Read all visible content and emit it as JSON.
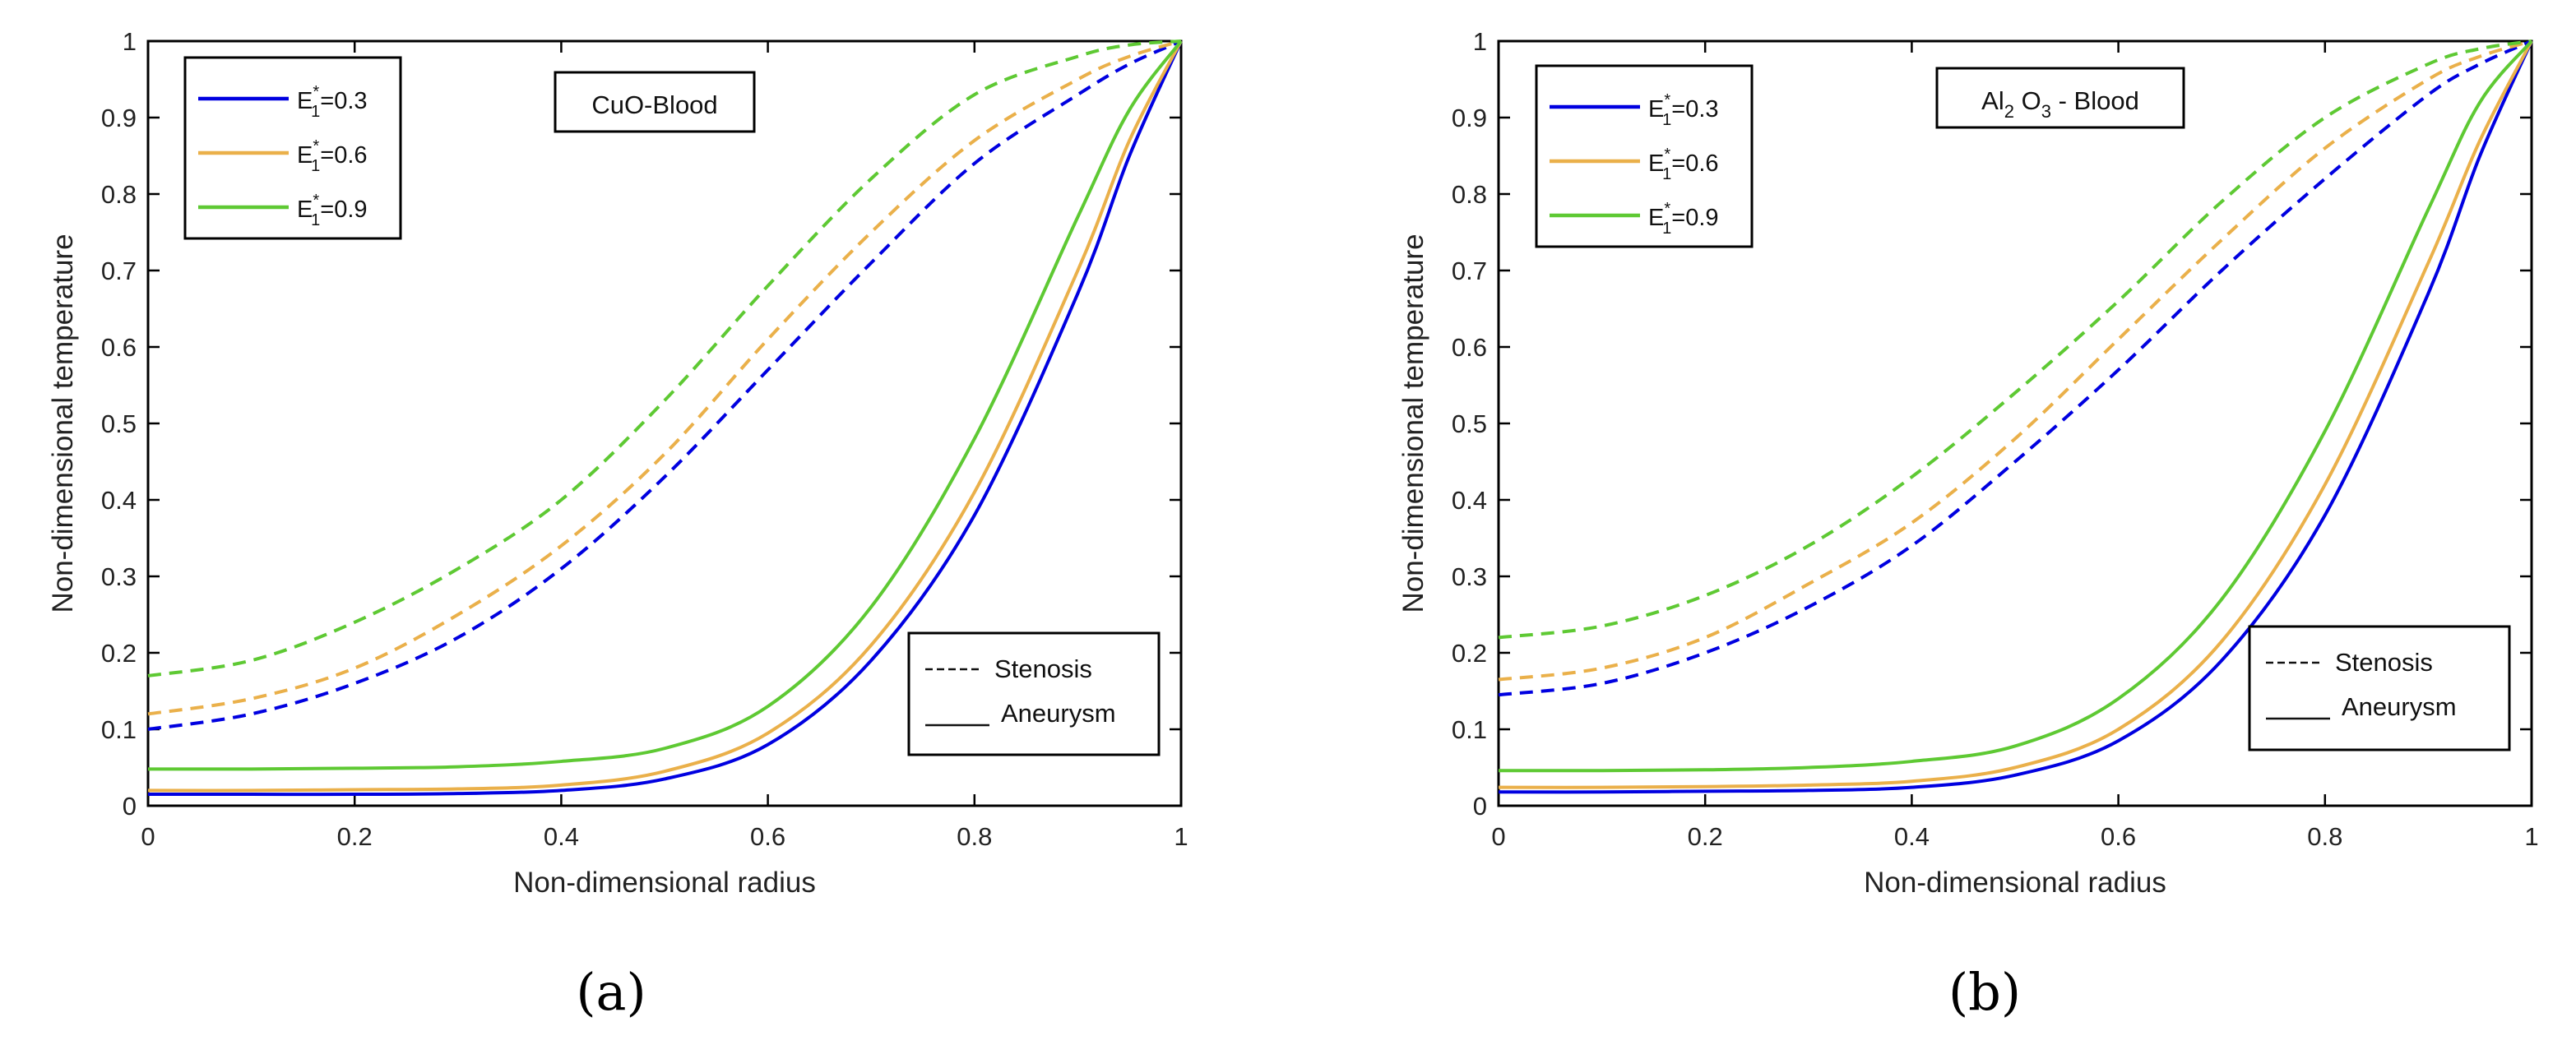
{
  "panel_labels": [
    "(a)",
    "(b)"
  ],
  "chart_data": [
    {
      "type": "line",
      "title": "",
      "annotation": "CuO-Blood",
      "xlabel": "Non-dimensional radius",
      "ylabel": "Non-dimensional temperature",
      "xlim": [
        0,
        1
      ],
      "ylim": [
        0,
        1
      ],
      "xticks": [
        0,
        0.2,
        0.4,
        0.6,
        0.8,
        1
      ],
      "xtick_labels": [
        "0",
        "0.2",
        "0.4",
        "0.6",
        "0.8",
        "1"
      ],
      "yticks": [
        0,
        0.1,
        0.2,
        0.3,
        0.4,
        0.5,
        0.6,
        0.7,
        0.8,
        0.9,
        1
      ],
      "ytick_labels": [
        "0",
        "0.1",
        "0.2",
        "0.3",
        "0.4",
        "0.5",
        "0.6",
        "0.7",
        "0.8",
        "0.9",
        "1"
      ],
      "grid": false,
      "legend_position": "top-left",
      "legend": [
        {
          "sym": "E",
          "sub": "1",
          "sup": "*",
          "value": "=0.3",
          "color": "#0000e0"
        },
        {
          "sym": "E",
          "sub": "1",
          "sup": "*",
          "value": "=0.6",
          "color": "#eab04a"
        },
        {
          "sym": "E",
          "sub": "1",
          "sup": "*",
          "value": "=0.9",
          "color": "#5ec933"
        }
      ],
      "style_legend_position": "bottom-right",
      "style_legend": [
        {
          "dash": "-----",
          "label": "Stenosis"
        },
        {
          "dash": "____",
          "label": "Aneurysm"
        }
      ],
      "x": [
        0,
        0.1,
        0.2,
        0.3,
        0.4,
        0.5,
        0.6,
        0.7,
        0.8,
        0.9,
        0.95,
        1
      ],
      "series": [
        {
          "name": "E1*=0.3 Stenosis",
          "color": "#0000e0",
          "style": "dashed",
          "values": [
            0.1,
            0.12,
            0.16,
            0.22,
            0.31,
            0.43,
            0.57,
            0.71,
            0.84,
            0.93,
            0.97,
            1.0
          ]
        },
        {
          "name": "E1*=0.6 Stenosis",
          "color": "#eab04a",
          "style": "dashed",
          "values": [
            0.12,
            0.14,
            0.18,
            0.25,
            0.34,
            0.46,
            0.61,
            0.75,
            0.87,
            0.95,
            0.98,
            1.0
          ]
        },
        {
          "name": "E1*=0.9 Stenosis",
          "color": "#5ec933",
          "style": "dashed",
          "values": [
            0.17,
            0.19,
            0.24,
            0.31,
            0.4,
            0.53,
            0.68,
            0.82,
            0.93,
            0.98,
            0.995,
            1.0
          ]
        },
        {
          "name": "E1*=0.3 Aneurysm",
          "color": "#0000e0",
          "style": "solid",
          "values": [
            0.015,
            0.015,
            0.015,
            0.016,
            0.02,
            0.035,
            0.08,
            0.19,
            0.38,
            0.67,
            0.85,
            1.0
          ]
        },
        {
          "name": "E1*=0.6 Aneurysm",
          "color": "#eab04a",
          "style": "solid",
          "values": [
            0.02,
            0.02,
            0.021,
            0.022,
            0.027,
            0.045,
            0.095,
            0.21,
            0.41,
            0.7,
            0.87,
            1.0
          ]
        },
        {
          "name": "E1*=0.9 Aneurysm",
          "color": "#5ec933",
          "style": "solid",
          "values": [
            0.048,
            0.048,
            0.049,
            0.051,
            0.058,
            0.075,
            0.13,
            0.26,
            0.48,
            0.77,
            0.91,
            1.0
          ]
        }
      ]
    },
    {
      "type": "line",
      "title": "",
      "annotation": "Al2 O3 - Blood",
      "annotation_parts": [
        {
          "t": "Al"
        },
        {
          "t": "2",
          "sub": true
        },
        {
          "t": " O"
        },
        {
          "t": "3",
          "sub": true
        },
        {
          "t": " - Blood"
        }
      ],
      "xlabel": "Non-dimensional radius",
      "ylabel": "Non-dimensional temperature",
      "xlim": [
        0,
        1
      ],
      "ylim": [
        0,
        1
      ],
      "xticks": [
        0,
        0.2,
        0.4,
        0.6,
        0.8,
        1
      ],
      "xtick_labels": [
        "0",
        "0.2",
        "0.4",
        "0.6",
        "0.8",
        "1"
      ],
      "yticks": [
        0,
        0.1,
        0.2,
        0.3,
        0.4,
        0.5,
        0.6,
        0.7,
        0.8,
        0.9,
        1
      ],
      "ytick_labels": [
        "0",
        "0.1",
        "0.2",
        "0.3",
        "0.4",
        "0.5",
        "0.6",
        "0.7",
        "0.8",
        "0.9",
        "1"
      ],
      "grid": false,
      "legend_position": "top-left",
      "legend": [
        {
          "sym": "E",
          "sub": "1",
          "sup": "*",
          "value": "=0.3",
          "color": "#0000e0"
        },
        {
          "sym": "E",
          "sub": "1",
          "sup": "*",
          "value": "=0.6",
          "color": "#eab04a"
        },
        {
          "sym": "E",
          "sub": "1",
          "sup": "*",
          "value": "=0.9",
          "color": "#5ec933"
        }
      ],
      "style_legend_position": "bottom-right",
      "style_legend": [
        {
          "dash": "-----",
          "label": "Stenosis"
        },
        {
          "dash": "____",
          "label": "Aneurysm"
        }
      ],
      "x": [
        0,
        0.1,
        0.2,
        0.3,
        0.4,
        0.5,
        0.6,
        0.7,
        0.8,
        0.9,
        0.95,
        1
      ],
      "series": [
        {
          "name": "E1*=0.3 Stenosis",
          "color": "#0000e0",
          "style": "dashed",
          "values": [
            0.145,
            0.16,
            0.2,
            0.26,
            0.34,
            0.45,
            0.57,
            0.7,
            0.82,
            0.93,
            0.97,
            1.0
          ]
        },
        {
          "name": "E1*=0.6 Stenosis",
          "color": "#eab04a",
          "style": "dashed",
          "values": [
            0.165,
            0.18,
            0.22,
            0.29,
            0.37,
            0.48,
            0.61,
            0.74,
            0.86,
            0.95,
            0.98,
            1.0
          ]
        },
        {
          "name": "E1*=0.9 Stenosis",
          "color": "#5ec933",
          "style": "dashed",
          "values": [
            0.22,
            0.235,
            0.275,
            0.34,
            0.43,
            0.54,
            0.66,
            0.79,
            0.9,
            0.97,
            0.99,
            1.0
          ]
        },
        {
          "name": "E1*=0.3 Aneurysm",
          "color": "#0000e0",
          "style": "solid",
          "values": [
            0.018,
            0.018,
            0.019,
            0.02,
            0.024,
            0.04,
            0.085,
            0.19,
            0.38,
            0.67,
            0.85,
            1.0
          ]
        },
        {
          "name": "E1*=0.6 Aneurysm",
          "color": "#eab04a",
          "style": "solid",
          "values": [
            0.024,
            0.024,
            0.025,
            0.027,
            0.032,
            0.05,
            0.1,
            0.215,
            0.42,
            0.71,
            0.87,
            1.0
          ]
        },
        {
          "name": "E1*=0.9 Aneurysm",
          "color": "#5ec933",
          "style": "solid",
          "values": [
            0.046,
            0.046,
            0.047,
            0.05,
            0.058,
            0.078,
            0.14,
            0.27,
            0.49,
            0.78,
            0.92,
            1.0
          ]
        }
      ]
    }
  ]
}
